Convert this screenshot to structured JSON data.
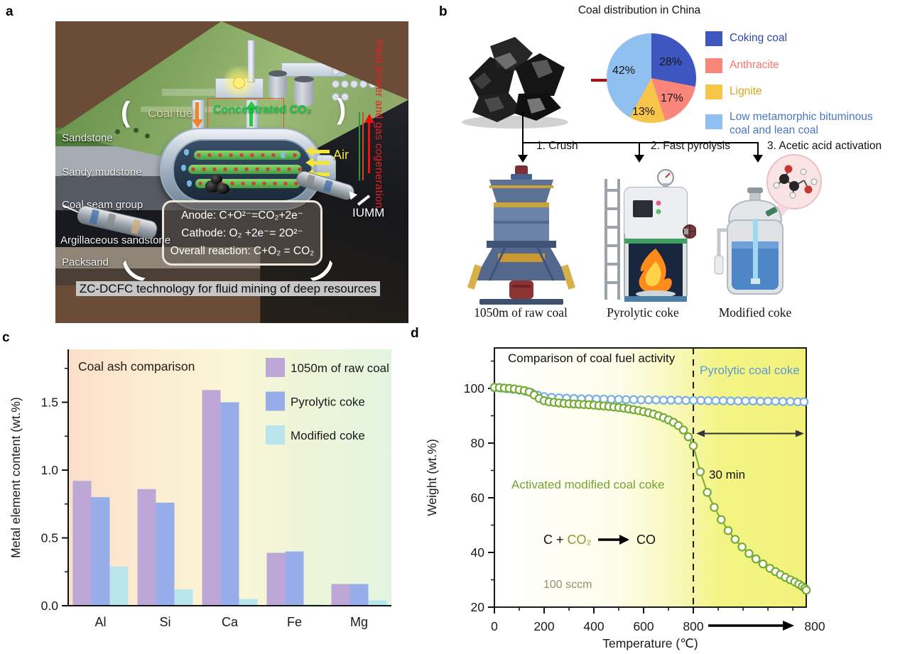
{
  "panel_labels": {
    "a": "a",
    "b": "b",
    "c": "c",
    "d": "d"
  },
  "panels": {
    "a": {
      "strata": [
        "Sandstone",
        "Sandy mudstone",
        "Coal seam group",
        "Argillaceous sandstone",
        "Packsand"
      ],
      "coal_fuel": "Coal fuel",
      "co2": "Concentrated CO₂",
      "air": "Air",
      "iumm": "IUMM",
      "side_text": "Heat power and gas cogeneration",
      "reactions": {
        "anode": "Anode: C+O²⁻=CO₂+2e⁻",
        "cathode": "Cathode:  O₂ +2e⁻= 2O²⁻",
        "overall": "Overall reaction:  C+O₂ = CO₂"
      },
      "caption": "ZC-DCFC technology for fluid mining of deep resources"
    },
    "b": {
      "title": "Coal distribution in China",
      "pie": {
        "slices": [
          {
            "label": "Coking coal",
            "value": 28,
            "pct": "28%",
            "color": "#3d56c0",
            "text_color": "#2d4aa8"
          },
          {
            "label": "Anthracite",
            "value": 17,
            "pct": "17%",
            "color": "#f9857b",
            "text_color": "#f3756b"
          },
          {
            "label": "Lignite",
            "value": 13,
            "pct": "13%",
            "color": "#f8c54b",
            "text_color": "#d9a41c"
          },
          {
            "label": "Low metamorphic bituminous coal and lean coal",
            "value": 42,
            "pct": "42%",
            "color": "#8fc0f0",
            "text_color": "#4a76c4"
          }
        ]
      },
      "steps": [
        "1. Crush",
        "2. Fast pyrolysis",
        "3. Acetic acid activation"
      ],
      "captions": [
        "1050m of raw coal",
        "Pyrolytic coke",
        "Modified coke"
      ]
    }
  },
  "chart_data": [
    {
      "type": "bar",
      "panel": "c",
      "title": "Coal ash comparison",
      "categories": [
        "Al",
        "Si",
        "Ca",
        "Fe",
        "Mg"
      ],
      "series": [
        {
          "name": "1050m of raw coal",
          "color": "#bda7d6",
          "values": [
            0.92,
            0.86,
            1.59,
            0.39,
            0.16
          ]
        },
        {
          "name": "Pyrolytic coke",
          "color": "#97aeea",
          "values": [
            0.8,
            0.76,
            1.5,
            0.4,
            0.16
          ]
        },
        {
          "name": "Modified coke",
          "color": "#b9e6ec",
          "values": [
            0.29,
            0.12,
            0.05,
            0.01,
            0.04
          ]
        }
      ],
      "xlabel": "",
      "ylabel": "Metal element content (wt.%)",
      "yticks": [
        0.0,
        0.5,
        1.0,
        1.5
      ],
      "ylim": [
        0,
        1.89
      ],
      "grid": false,
      "legend_position": "top-right",
      "background_bands": [
        "#fbdfc9",
        "#fcedd2",
        "#faf6d6",
        "#edf5d8",
        "#e3f5e1"
      ]
    },
    {
      "type": "line",
      "panel": "d",
      "title": "Comparison of coal fuel activity",
      "xlabel": "Temperature (℃)",
      "ylabel": "Weight (wt.%)",
      "xticks": [
        0,
        200,
        400,
        600,
        800
      ],
      "x_end_label": "800",
      "yticks": [
        20,
        40,
        60,
        80,
        100
      ],
      "ylim": [
        20,
        114.8
      ],
      "xlim": [
        0,
        1254
      ],
      "axis_note": "0–800 °C ramp, then 30 min isothermal hold at 800 °C (right of dashed line)",
      "dashed_line_x": 800,
      "hold_arrow_y": 83.5,
      "grid": false,
      "annotations": {
        "hold_duration": "30 min",
        "reaction_left": "C + ",
        "reaction_co2": "CO₂",
        "reaction_product": "CO",
        "flow_rate": "100 sccm"
      },
      "series": [
        {
          "name": "Pyrolytic coal coke",
          "color": "#7aade0",
          "label_color": "#5b9bd5",
          "points": [
            [
              0,
              100.2
            ],
            [
              25,
              100.1
            ],
            [
              50,
              99.9
            ],
            [
              75,
              99.7
            ],
            [
              100,
              99.4
            ],
            [
              125,
              99.0
            ],
            [
              150,
              98.4
            ],
            [
              175,
              97.5
            ],
            [
              200,
              97.0
            ],
            [
              230,
              96.7
            ],
            [
              260,
              96.5
            ],
            [
              290,
              96.4
            ],
            [
              320,
              96.3
            ],
            [
              350,
              96.2
            ],
            [
              380,
              96.2
            ],
            [
              410,
              96.1
            ],
            [
              440,
              96.1
            ],
            [
              470,
              96.0
            ],
            [
              500,
              96.0
            ],
            [
              530,
              95.9
            ],
            [
              560,
              95.9
            ],
            [
              590,
              95.8
            ],
            [
              620,
              95.8
            ],
            [
              650,
              95.8
            ],
            [
              680,
              95.7
            ],
            [
              710,
              95.7
            ],
            [
              740,
              95.7
            ],
            [
              770,
              95.6
            ],
            [
              800,
              95.6
            ],
            [
              830,
              95.6
            ],
            [
              860,
              95.5
            ],
            [
              890,
              95.5
            ],
            [
              920,
              95.5
            ],
            [
              950,
              95.4
            ],
            [
              980,
              95.4
            ],
            [
              1010,
              95.4
            ],
            [
              1040,
              95.4
            ],
            [
              1070,
              95.3
            ],
            [
              1100,
              95.3
            ],
            [
              1130,
              95.3
            ],
            [
              1160,
              95.2
            ],
            [
              1190,
              95.2
            ],
            [
              1220,
              95.1
            ],
            [
              1245,
              95.1
            ]
          ]
        },
        {
          "name": "Activated modified coal coke",
          "color": "#76ab34",
          "label_color": "#76a234",
          "points": [
            [
              0,
              100.4
            ],
            [
              20,
              100.3
            ],
            [
              40,
              100.1
            ],
            [
              60,
              100.0
            ],
            [
              80,
              99.8
            ],
            [
              100,
              99.5
            ],
            [
              120,
              99.2
            ],
            [
              140,
              98.7
            ],
            [
              160,
              97.6
            ],
            [
              180,
              96.3
            ],
            [
              200,
              95.5
            ],
            [
              220,
              95.1
            ],
            [
              240,
              94.9
            ],
            [
              260,
              94.7
            ],
            [
              280,
              94.5
            ],
            [
              300,
              94.4
            ],
            [
              320,
              94.3
            ],
            [
              340,
              94.2
            ],
            [
              360,
              94.1
            ],
            [
              380,
              94.0
            ],
            [
              400,
              93.9
            ],
            [
              420,
              93.7
            ],
            [
              440,
              93.6
            ],
            [
              460,
              93.4
            ],
            [
              480,
              93.2
            ],
            [
              500,
              93.0
            ],
            [
              520,
              92.8
            ],
            [
              540,
              92.5
            ],
            [
              560,
              92.2
            ],
            [
              580,
              91.9
            ],
            [
              600,
              91.5
            ],
            [
              620,
              91.1
            ],
            [
              640,
              90.6
            ],
            [
              660,
              90.0
            ],
            [
              680,
              89.3
            ],
            [
              700,
              88.5
            ],
            [
              720,
              87.6
            ],
            [
              740,
              86.4
            ],
            [
              760,
              84.8
            ],
            [
              780,
              82.3
            ],
            [
              800,
              79.0
            ],
            [
              828,
              69.5
            ],
            [
              856,
              62.0
            ],
            [
              884,
              56.5
            ],
            [
              912,
              52.0
            ],
            [
              940,
              48.0
            ],
            [
              968,
              44.8
            ],
            [
              996,
              42.0
            ],
            [
              1024,
              39.6
            ],
            [
              1052,
              37.6
            ],
            [
              1080,
              35.8
            ],
            [
              1108,
              34.2
            ],
            [
              1130,
              33.0
            ],
            [
              1150,
              31.9
            ],
            [
              1170,
              30.9
            ],
            [
              1190,
              30.0
            ],
            [
              1208,
              29.2
            ],
            [
              1224,
              28.4
            ],
            [
              1238,
              27.6
            ],
            [
              1248,
              26.9
            ],
            [
              1254,
              26.2
            ]
          ]
        }
      ]
    }
  ]
}
